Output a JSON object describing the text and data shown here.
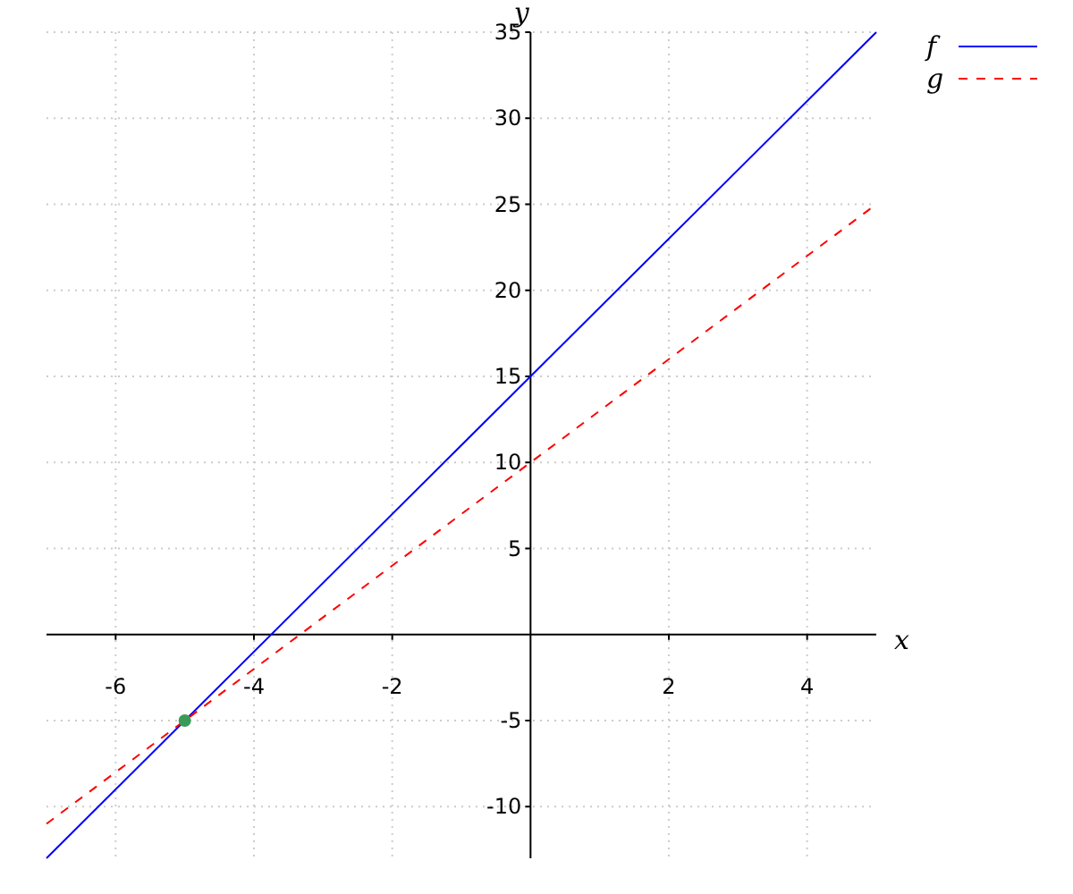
{
  "chart_data": {
    "type": "line",
    "xlabel": "x",
    "ylabel": "y",
    "series": [
      {
        "name": "f",
        "color": "#0000ff",
        "x": [
          -7,
          5
        ],
        "values": [
          -13,
          35
        ],
        "line_style": "solid"
      },
      {
        "name": "g",
        "color": "#ff0000",
        "x": [
          -7,
          5
        ],
        "values": [
          -11,
          25
        ],
        "line_style": "dashed"
      },
      {
        "type": "scatter",
        "color": "#3a9a5a",
        "x": [
          -5
        ],
        "values": [
          -5
        ],
        "marker": "circle"
      }
    ],
    "xlim": [
      -7,
      5
    ],
    "ylim": [
      -13,
      35
    ],
    "xticks": [
      -6,
      -4,
      -2,
      2,
      4
    ],
    "yticks": [
      -10,
      -5,
      5,
      10,
      15,
      20,
      25,
      30,
      35
    ],
    "grid": true,
    "legend": "top right"
  }
}
